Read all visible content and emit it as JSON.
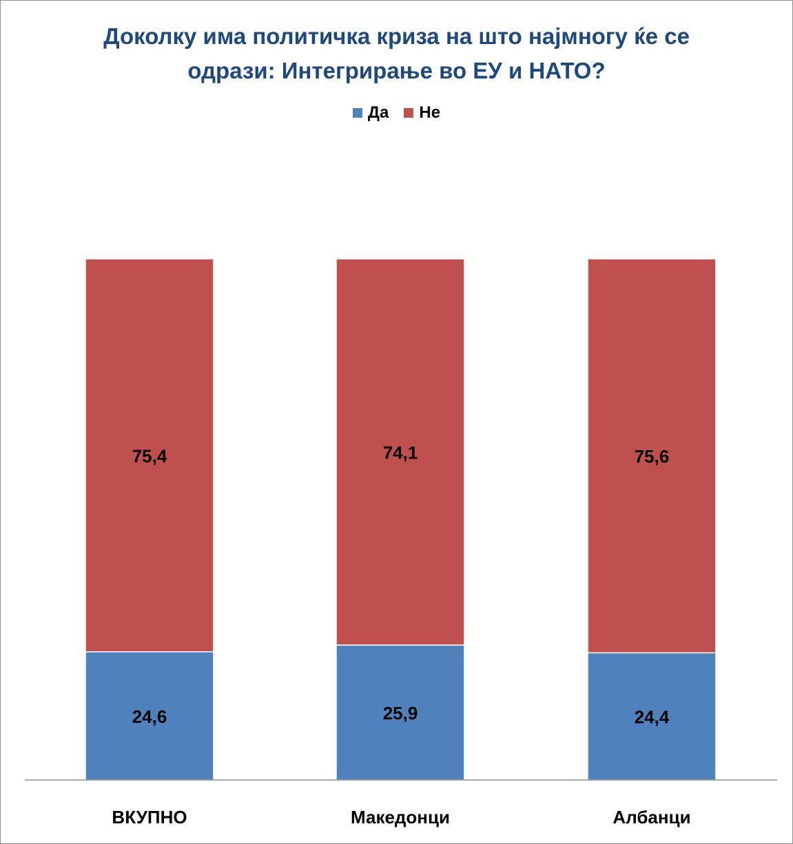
{
  "chart_data": {
    "type": "bar",
    "stacked": true,
    "title_lines": [
      "Доколку има политичка криза на што најмногу ќе се",
      "одрази: Интегрирање во ЕУ и НАТО?"
    ],
    "categories": [
      "ВКУПНО",
      "Македонци",
      "Албанци"
    ],
    "series": [
      {
        "name": "Да",
        "values": [
          24.6,
          25.9,
          24.4
        ],
        "labels": [
          "24,6",
          "25,9",
          "24,4"
        ],
        "color": "#4f81bd"
      },
      {
        "name": "Не",
        "values": [
          75.4,
          74.1,
          75.6
        ],
        "labels": [
          "75,4",
          "74,1",
          "75,6"
        ],
        "color": "#c0504d"
      }
    ],
    "ylim": [
      0,
      100
    ],
    "grid": false,
    "legend_position": "top"
  }
}
